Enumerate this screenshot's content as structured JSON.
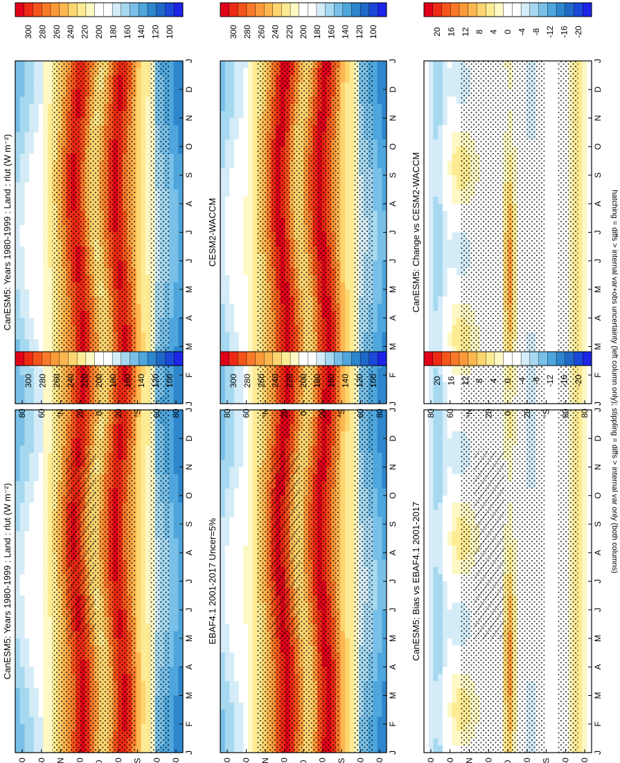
{
  "figure_note": "hatching = diffs > internal var+obs uncertainty (left column only); stippling = diffs > internal var only (both columns)",
  "colorbars": {
    "abs": {
      "ticks": [
        "300",
        "280",
        "260",
        "240",
        "220",
        "200",
        "180",
        "160",
        "140",
        "120",
        "100"
      ],
      "colors": [
        "#e0001a",
        "#ee2a14",
        "#f5551b",
        "#f9792a",
        "#fb9a3a",
        "#fcb751",
        "#fdd56f",
        "#fdeb94",
        "#fdf8c4",
        "#ffffff",
        "#ffffff",
        "#d3ecf7",
        "#a6d8f0",
        "#79c0e8",
        "#4fa6dc",
        "#2e86cc",
        "#2068c8",
        "#1a48d8",
        "#1e24e8"
      ]
    },
    "diff": {
      "ticks": [
        "20",
        "16",
        "12",
        "8",
        "4",
        "0",
        "-4",
        "-8",
        "-12",
        "-16",
        "-20"
      ],
      "colors": [
        "#e0001a",
        "#ee2a14",
        "#f5551b",
        "#f9792a",
        "#fb9a3a",
        "#fcb751",
        "#fdd56f",
        "#fdeb94",
        "#fdf8c4",
        "#ffffff",
        "#ffffff",
        "#d3ecf7",
        "#a6d8f0",
        "#79c0e8",
        "#4fa6dc",
        "#2e86cc",
        "#2068c8",
        "#1a48d8",
        "#1e24e8"
      ]
    }
  },
  "chart_data": [
    {
      "type": "heatmap",
      "title": "CanESM5: Years 1980-1999 : Land : rlut (W m⁻²)",
      "x_categories": [
        "J",
        "F",
        "M",
        "A",
        "M",
        "J",
        "J",
        "A",
        "S",
        "O",
        "N",
        "D",
        "J"
      ],
      "y_ticks": [
        "80",
        "60",
        "°N",
        "20",
        "0",
        "20",
        "°S",
        "60",
        "80"
      ],
      "ylim": [
        -90,
        90
      ],
      "colorbar": "abs",
      "units": "W m-2",
      "hatching": true,
      "stippling": true
    },
    {
      "type": "heatmap",
      "title": "CanESM5: Years 1980-1999 : Land : rlut (W m⁻²)",
      "x_categories": [
        "J",
        "F",
        "M",
        "A",
        "M",
        "J",
        "J",
        "A",
        "S",
        "O",
        "N",
        "D",
        "J"
      ],
      "y_ticks": [
        "80",
        "60",
        "°N",
        "20",
        "0",
        "20",
        "°S",
        "60",
        "80"
      ],
      "ylim": [
        -90,
        90
      ],
      "colorbar": "abs",
      "units": "W m-2",
      "hatching": false,
      "stippling": true
    },
    {
      "type": "heatmap",
      "title": "EBAF4.1 2001-2017 Uncer=5%",
      "x_categories": [
        "J",
        "F",
        "M",
        "A",
        "M",
        "J",
        "J",
        "A",
        "S",
        "O",
        "N",
        "D",
        "J"
      ],
      "y_ticks": [
        "80",
        "60",
        "°N",
        "20",
        "0",
        "20",
        "°S",
        "60",
        "80"
      ],
      "ylim": [
        -90,
        90
      ],
      "colorbar": "abs",
      "hatching": true,
      "stippling": true
    },
    {
      "type": "heatmap",
      "title": "CESM2-WACCM",
      "x_categories": [
        "J",
        "F",
        "M",
        "A",
        "M",
        "J",
        "J",
        "A",
        "S",
        "O",
        "N",
        "D",
        "J"
      ],
      "y_ticks": [
        "80",
        "60",
        "°N",
        "20",
        "0",
        "20",
        "°S",
        "60",
        "80"
      ],
      "ylim": [
        -90,
        90
      ],
      "colorbar": "abs",
      "hatching": false,
      "stippling": true
    },
    {
      "type": "heatmap",
      "title": "CanESM5: Bias vs EBAF4.1 2001-2017",
      "x_categories": [
        "J",
        "F",
        "M",
        "A",
        "M",
        "J",
        "J",
        "A",
        "S",
        "O",
        "N",
        "D",
        "J"
      ],
      "y_ticks": [
        "80",
        "60",
        "°N",
        "20",
        "0",
        "20",
        "°S",
        "60",
        "80"
      ],
      "ylim": [
        -90,
        90
      ],
      "colorbar": "diff",
      "hatching": true,
      "stippling": true
    },
    {
      "type": "heatmap",
      "title": "CanESM5: Change vs CESM2-WACCM",
      "x_categories": [
        "J",
        "F",
        "M",
        "A",
        "M",
        "J",
        "J",
        "A",
        "S",
        "O",
        "N",
        "D",
        "J"
      ],
      "y_ticks": [
        "80",
        "60",
        "°N",
        "20",
        "0",
        "20",
        "°S",
        "60",
        "80"
      ],
      "ylim": [
        -90,
        90
      ],
      "colorbar": "diff",
      "hatching": false,
      "stippling": true
    }
  ]
}
